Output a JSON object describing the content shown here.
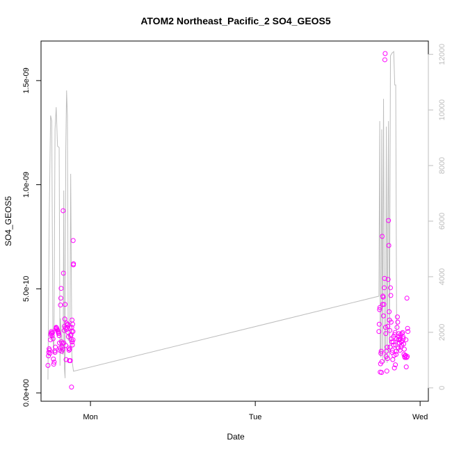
{
  "chart_data": {
    "type": "scatter",
    "title": "ATOM2 Northeast_Pacific_2 SO4_GEOS5",
    "xlabel": "Date",
    "ylabel": "SO4_GEOS5",
    "x_ticks": [
      "Mon",
      "Tue",
      "Wed"
    ],
    "y_ticks": [
      "0.0e+00",
      "5.0e-10",
      "1.0e-09",
      "1.5e-09"
    ],
    "y_tick_values": [
      0,
      5e-10,
      1e-09,
      1.5e-09
    ],
    "y2_ticks": [
      "0",
      "2000",
      "4000",
      "6000",
      "8000",
      "10000",
      "12000"
    ],
    "y2_tick_values": [
      0,
      2000,
      4000,
      6000,
      8000,
      10000,
      12000
    ],
    "xlim": [
      -0.3,
      2.05
    ],
    "ylim": [
      -4e-11,
      1.69e-09
    ],
    "y2lim": [
      -480,
      12480
    ],
    "grid": false,
    "legend": "none",
    "colors": {
      "points": "#ff00ff",
      "line": "#bdbdbd",
      "right_axis": "#bdbdbd"
    },
    "series": [
      {
        "type": "scatter",
        "values": [
          [
            -0.258,
            1.32e-10
          ],
          [
            -0.255,
            1.78e-10
          ],
          [
            -0.253,
            1.95e-10
          ],
          [
            -0.251,
            2.12e-10
          ],
          [
            -0.249,
            2.05e-10
          ],
          [
            -0.246,
            1.9e-10
          ],
          [
            -0.243,
            2.55e-10
          ],
          [
            -0.241,
            2.8e-10
          ],
          [
            -0.239,
            2.88e-10
          ],
          [
            -0.237,
            2.95e-10
          ],
          [
            -0.235,
            2.85e-10
          ],
          [
            -0.232,
            2.75e-10
          ],
          [
            -0.23,
            2.9e-10
          ],
          [
            -0.227,
            2.6e-10
          ],
          [
            -0.225,
            1.63e-10
          ],
          [
            -0.223,
            1.38e-10
          ],
          [
            -0.22,
            1.48e-10
          ],
          [
            -0.217,
            2.02e-10
          ],
          [
            -0.215,
            1.95e-10
          ],
          [
            -0.213,
            2.2e-10
          ],
          [
            -0.21,
            3.08e-10
          ],
          [
            -0.208,
            3.15e-10
          ],
          [
            -0.206,
            3.12e-10
          ],
          [
            -0.203,
            3.05e-10
          ],
          [
            -0.2,
            3e-10
          ],
          [
            -0.197,
            2.95e-10
          ],
          [
            -0.195,
            2.9e-10
          ],
          [
            -0.193,
            2.85e-10
          ],
          [
            -0.19,
            2.75e-10
          ],
          [
            -0.188,
            2.4e-10
          ],
          [
            -0.186,
            2.05e-10
          ],
          [
            -0.184,
            2.15e-10
          ],
          [
            -0.182,
            4.22e-10
          ],
          [
            -0.18,
            4.55e-10
          ],
          [
            -0.178,
            5.02e-10
          ],
          [
            -0.176,
            2.45e-10
          ],
          [
            -0.174,
            2e-10
          ],
          [
            -0.172,
            2.2e-10
          ],
          [
            -0.17,
            2.38e-10
          ],
          [
            -0.168,
            2.1e-10
          ],
          [
            -0.166,
            8.75e-10
          ],
          [
            -0.164,
            5.75e-10
          ],
          [
            -0.162,
            2.4e-10
          ],
          [
            -0.16,
            3e-10
          ],
          [
            -0.158,
            3.2e-10
          ],
          [
            -0.156,
            3.55e-10
          ],
          [
            -0.154,
            4.25e-10
          ],
          [
            -0.152,
            3.12e-10
          ],
          [
            -0.15,
            2.28e-10
          ],
          [
            -0.148,
            1.6e-10
          ],
          [
            -0.146,
            3.05e-10
          ],
          [
            -0.144,
            3.35e-10
          ],
          [
            -0.142,
            3.15e-10
          ],
          [
            -0.14,
            3.25e-10
          ],
          [
            -0.138,
            3.3e-10
          ],
          [
            -0.136,
            2.9e-10
          ],
          [
            -0.134,
            2.7e-10
          ],
          [
            -0.132,
            2.15e-10
          ],
          [
            -0.13,
            2.05e-10
          ],
          [
            -0.128,
            1.55e-10
          ],
          [
            -0.126,
            2.1e-10
          ],
          [
            -0.124,
            3.12e-10
          ],
          [
            -0.122,
            1.55e-10
          ],
          [
            -0.12,
            2.75e-10
          ],
          [
            -0.118,
            2.8e-10
          ],
          [
            -0.116,
            2.55e-10
          ],
          [
            -0.114,
            3.15e-10
          ],
          [
            -0.113,
            2.95e-10
          ],
          [
            -0.112,
            3.5e-10
          ],
          [
            -0.111,
            2.45e-10
          ],
          [
            -0.11,
            2.3e-10
          ],
          [
            -0.108,
            3.3e-10
          ],
          [
            -0.106,
            2.95e-10
          ],
          [
            -0.106,
            2.55e-10
          ],
          [
            -0.105,
            7.32e-10
          ],
          [
            -0.104,
            6.15e-10
          ],
          [
            -0.103,
            6.2e-10
          ],
          [
            -0.115,
            2.8e-11
          ],
          [
            1.75,
            2.95e-10
          ],
          [
            1.752,
            3.3e-10
          ],
          [
            1.754,
            4e-10
          ],
          [
            1.756,
            4.1e-10
          ],
          [
            1.758,
            1e-10
          ],
          [
            1.76,
            1.4e-10
          ],
          [
            1.762,
            1.9e-10
          ],
          [
            1.764,
            2e-10
          ],
          [
            1.766,
            9.8e-11
          ],
          [
            1.768,
            1.5e-10
          ],
          [
            1.77,
            7.52e-10
          ],
          [
            1.772,
            4.25e-10
          ],
          [
            1.774,
            4.65e-10
          ],
          [
            1.776,
            4.6e-10
          ],
          [
            1.778,
            3.7e-10
          ],
          [
            1.78,
            4.25e-10
          ],
          [
            1.782,
            5.05e-10
          ],
          [
            1.784,
            5.5e-10
          ],
          [
            1.786,
            1.6e-09
          ],
          [
            1.788,
            1.63e-09
          ],
          [
            1.79,
            3.15e-10
          ],
          [
            1.792,
            2.85e-10
          ],
          [
            1.794,
            1.75e-10
          ],
          [
            1.796,
            2e-10
          ],
          [
            1.798,
            1.05e-10
          ],
          [
            1.8,
            2.2e-10
          ],
          [
            1.802,
            1.65e-10
          ],
          [
            1.804,
            3.2e-10
          ],
          [
            1.806,
            5.45e-10
          ],
          [
            1.808,
            8.28e-10
          ],
          [
            1.81,
            7.08e-10
          ],
          [
            1.812,
            3.9e-10
          ],
          [
            1.814,
            3.5e-10
          ],
          [
            1.816,
            3e-10
          ],
          [
            1.818,
            2.2e-10
          ],
          [
            1.82,
            5.05e-10
          ],
          [
            1.822,
            4.68e-10
          ],
          [
            1.824,
            3.4e-10
          ],
          [
            1.826,
            2.6e-10
          ],
          [
            1.828,
            2.45e-10
          ],
          [
            1.83,
            1.95e-10
          ],
          [
            1.832,
            2.05e-10
          ],
          [
            1.834,
            1.6e-10
          ],
          [
            1.836,
            2.45e-10
          ],
          [
            1.838,
            2.7e-10
          ],
          [
            1.84,
            2.3e-10
          ],
          [
            1.842,
            1.8e-10
          ],
          [
            1.844,
            1.2e-10
          ],
          [
            1.846,
            2.8e-10
          ],
          [
            1.848,
            2.9e-10
          ],
          [
            1.85,
            1.35e-10
          ],
          [
            1.852,
            2.3e-10
          ],
          [
            1.854,
            1.85e-10
          ],
          [
            1.856,
            2e-10
          ],
          [
            1.858,
            2.6e-10
          ],
          [
            1.86,
            3.15e-10
          ],
          [
            1.862,
            3.65e-10
          ],
          [
            1.864,
            3.4e-10
          ],
          [
            1.866,
            2.15e-10
          ],
          [
            1.868,
            2.55e-10
          ],
          [
            1.87,
            2.7e-10
          ],
          [
            1.872,
            2.85e-10
          ],
          [
            1.874,
            2.4e-10
          ],
          [
            1.876,
            2.55e-10
          ],
          [
            1.878,
            2.05e-10
          ],
          [
            1.88,
            2.6e-10
          ],
          [
            1.882,
            2.8e-10
          ],
          [
            1.884,
            2.2e-10
          ],
          [
            1.886,
            2.45e-10
          ],
          [
            1.888,
            2.3e-10
          ],
          [
            1.89,
            2.85e-10
          ],
          [
            1.892,
            2.5e-10
          ],
          [
            1.894,
            2.9e-10
          ],
          [
            1.896,
            2.7e-10
          ],
          [
            1.898,
            2.6e-10
          ],
          [
            1.9,
            2.35e-10
          ],
          [
            1.902,
            1.85e-10
          ],
          [
            1.904,
            2.1e-10
          ],
          [
            1.906,
            1.75e-10
          ],
          [
            1.908,
            1.7e-10
          ],
          [
            1.91,
            1.8e-10
          ],
          [
            1.912,
            1.8e-10
          ],
          [
            1.914,
            2.55e-10
          ],
          [
            1.916,
            1.25e-10
          ],
          [
            1.918,
            1.7e-10
          ],
          [
            1.92,
            4.55e-10
          ],
          [
            1.922,
            1.75e-10
          ],
          [
            1.924,
            3.1e-10
          ],
          [
            1.926,
            2.95e-10
          ]
        ]
      },
      {
        "type": "line",
        "axis": "right",
        "values": [
          [
            -0.258,
            300
          ],
          [
            -0.25,
            6200
          ],
          [
            -0.242,
            9800
          ],
          [
            -0.235,
            9600
          ],
          [
            -0.228,
            1800
          ],
          [
            -0.222,
            1200
          ],
          [
            -0.215,
            9300
          ],
          [
            -0.208,
            10100
          ],
          [
            -0.2,
            8700
          ],
          [
            -0.19,
            8650
          ],
          [
            -0.185,
            800
          ],
          [
            -0.182,
            2500
          ],
          [
            -0.176,
            1800
          ],
          [
            -0.171,
            1300
          ],
          [
            -0.166,
            1200
          ],
          [
            -0.162,
            7100
          ],
          [
            -0.158,
            700
          ],
          [
            -0.154,
            350
          ],
          [
            -0.15,
            8500
          ],
          [
            -0.145,
            10700
          ],
          [
            -0.14,
            9800
          ],
          [
            -0.135,
            1700
          ],
          [
            -0.13,
            1800
          ],
          [
            -0.125,
            1600
          ],
          [
            -0.12,
            7700
          ],
          [
            -0.113,
            1200
          ],
          [
            -0.11,
            900
          ],
          [
            -0.103,
            600
          ],
          [
            1.75,
            3300
          ],
          [
            1.755,
            9600
          ],
          [
            1.758,
            1200
          ],
          [
            1.762,
            1100
          ],
          [
            1.767,
            9300
          ],
          [
            1.772,
            1000
          ],
          [
            1.778,
            10400
          ],
          [
            1.784,
            900
          ],
          [
            1.79,
            1100
          ],
          [
            1.795,
            9400
          ],
          [
            1.8,
            900
          ],
          [
            1.808,
            9600
          ],
          [
            1.814,
            1000
          ],
          [
            1.82,
            11950
          ],
          [
            1.83,
            12050
          ],
          [
            1.84,
            12100
          ],
          [
            1.846,
            10900
          ],
          [
            1.852,
            10900
          ],
          [
            1.858,
            1300
          ]
        ]
      }
    ]
  }
}
